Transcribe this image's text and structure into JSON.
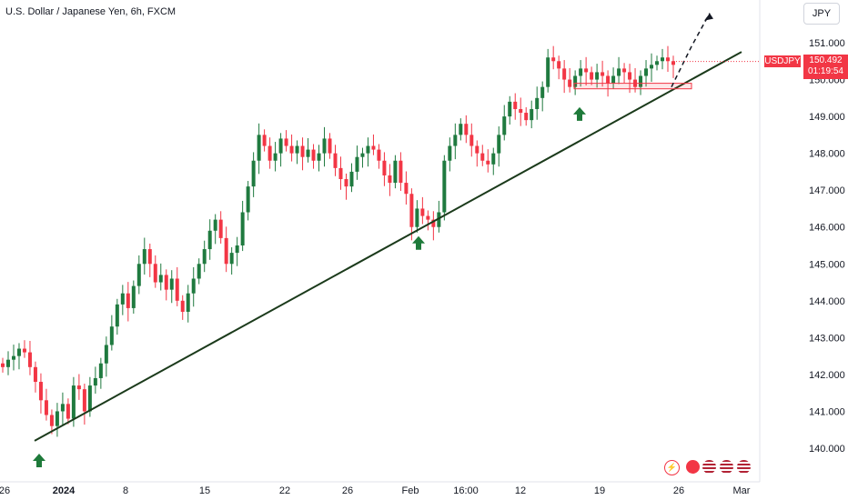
{
  "header": {
    "title": "U.S. Dollar / Japanese Yen, 6h, FXCM",
    "currency": "JPY"
  },
  "price_tag": {
    "symbol": "USDJPY",
    "price": "150.492",
    "countdown": "01:19:54"
  },
  "colors": {
    "up": "#1f7a3f",
    "down": "#f23645",
    "trendline": "#1b3a1b",
    "arrow": "#1e7a3a"
  },
  "bottom_icons": [
    "flash-icon",
    "record-icon",
    "us-flag-icon",
    "us-flag-icon-2",
    "us-flag-icon-3"
  ],
  "chart_data": {
    "type": "candlestick",
    "title": "U.S. Dollar / Japanese Yen, 6h, FXCM",
    "ylim": [
      139.75,
      151.4
    ],
    "yticks": [
      140,
      141,
      142,
      143,
      144,
      145,
      146,
      147,
      148,
      149,
      150,
      151
    ],
    "ytick_labels": [
      "140.000",
      "141.000",
      "142.000",
      "143.000",
      "144.000",
      "145.000",
      "146.000",
      "147.000",
      "148.000",
      "149.000",
      "150.000",
      "151.000"
    ],
    "xtick_labels": [
      "26",
      "2024",
      "8",
      "15",
      "22",
      "26",
      "Feb",
      "16:00",
      "12",
      "19",
      "26",
      "Mar"
    ],
    "last_price": 150.492,
    "support_zone": [
      149.75,
      149.9
    ],
    "trendline": [
      {
        "x": "Dec 28",
        "y": 140.2
      },
      {
        "x": "Mar 1",
        "y": 150.75
      }
    ],
    "projection": [
      {
        "x": "Feb 26",
        "y": 149.8
      },
      {
        "x": "Feb 27",
        "y": 150.9
      },
      {
        "x": "Feb 28",
        "y": 151.8
      }
    ],
    "up_arrows": [
      {
        "x": "Dec 28",
        "y": 140.1
      },
      {
        "x": "Feb 1",
        "y": 146.0
      },
      {
        "x": "Feb 17",
        "y": 149.5
      }
    ],
    "closes": [
      142.2,
      142.4,
      142.5,
      142.7,
      142.6,
      142.2,
      141.8,
      141.3,
      140.9,
      140.6,
      141.0,
      141.2,
      140.8,
      141.7,
      141.6,
      141.0,
      141.7,
      141.9,
      142.3,
      142.8,
      143.3,
      143.9,
      144.2,
      143.8,
      144.4,
      145.0,
      145.4,
      145.0,
      144.5,
      144.7,
      144.3,
      144.6,
      144.0,
      143.7,
      144.2,
      144.6,
      145.0,
      145.4,
      145.9,
      146.2,
      145.7,
      145.0,
      145.3,
      145.5,
      146.4,
      147.1,
      147.8,
      148.5,
      148.2,
      147.8,
      148.0,
      148.4,
      148.2,
      148.0,
      148.2,
      147.9,
      148.1,
      147.8,
      148.0,
      148.4,
      148.0,
      147.6,
      147.3,
      147.1,
      147.5,
      147.9,
      148.0,
      148.2,
      148.1,
      147.8,
      147.4,
      147.2,
      147.8,
      147.2,
      146.9,
      146.0,
      146.5,
      146.3,
      146.2,
      146.0,
      146.4,
      147.8,
      148.2,
      148.5,
      148.8,
      148.5,
      148.2,
      148.0,
      147.8,
      147.7,
      148.0,
      148.5,
      149.0,
      149.4,
      149.2,
      149.1,
      148.9,
      149.2,
      149.5,
      149.8,
      150.6,
      150.5,
      150.3,
      150.0,
      149.8,
      150.1,
      150.3,
      150.2,
      150.0,
      150.2,
      150.1,
      149.9,
      150.1,
      150.3,
      150.2,
      150.0,
      149.8,
      150.1,
      150.3,
      150.4,
      150.5,
      150.6,
      150.5,
      150.4
    ]
  }
}
